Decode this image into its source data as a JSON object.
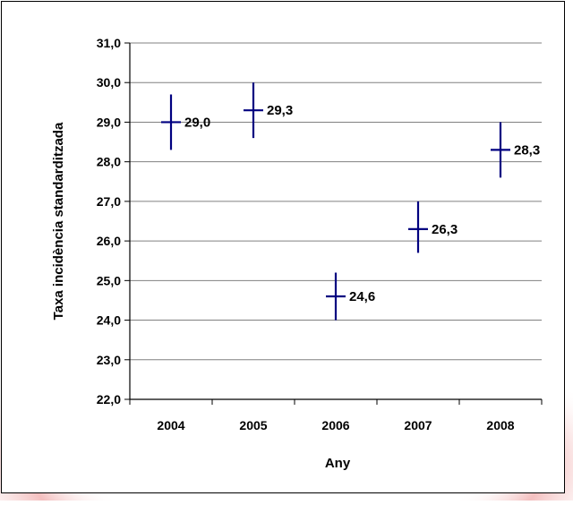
{
  "chart_data": {
    "type": "scatter",
    "title": "",
    "xlabel": "Any",
    "ylabel": "Taxa incidència standarditzada",
    "categories": [
      "2004",
      "2005",
      "2006",
      "2007",
      "2008"
    ],
    "series": [
      {
        "values": [
          29.0,
          29.3,
          24.6,
          26.3,
          28.3
        ],
        "lower": [
          28.3,
          28.6,
          24.0,
          25.7,
          27.6
        ],
        "upper": [
          29.7,
          30.0,
          25.2,
          27.0,
          29.0
        ],
        "color": "#000080"
      }
    ],
    "data_labels": [
      "29,0",
      "29,3",
      "24,6",
      "26,3",
      "28,3"
    ],
    "y_tick_labels": [
      "22,0",
      "23,0",
      "24,0",
      "25,0",
      "26,0",
      "27,0",
      "28,0",
      "29,0",
      "30,0",
      "31,0"
    ],
    "ylim": [
      22,
      31
    ],
    "y_step": 1,
    "grid": true,
    "legend": "none"
  },
  "colors": {
    "marker": "#000080",
    "gridline": "#808080",
    "axis": "#000000",
    "background_band": "#f3c0c0"
  }
}
